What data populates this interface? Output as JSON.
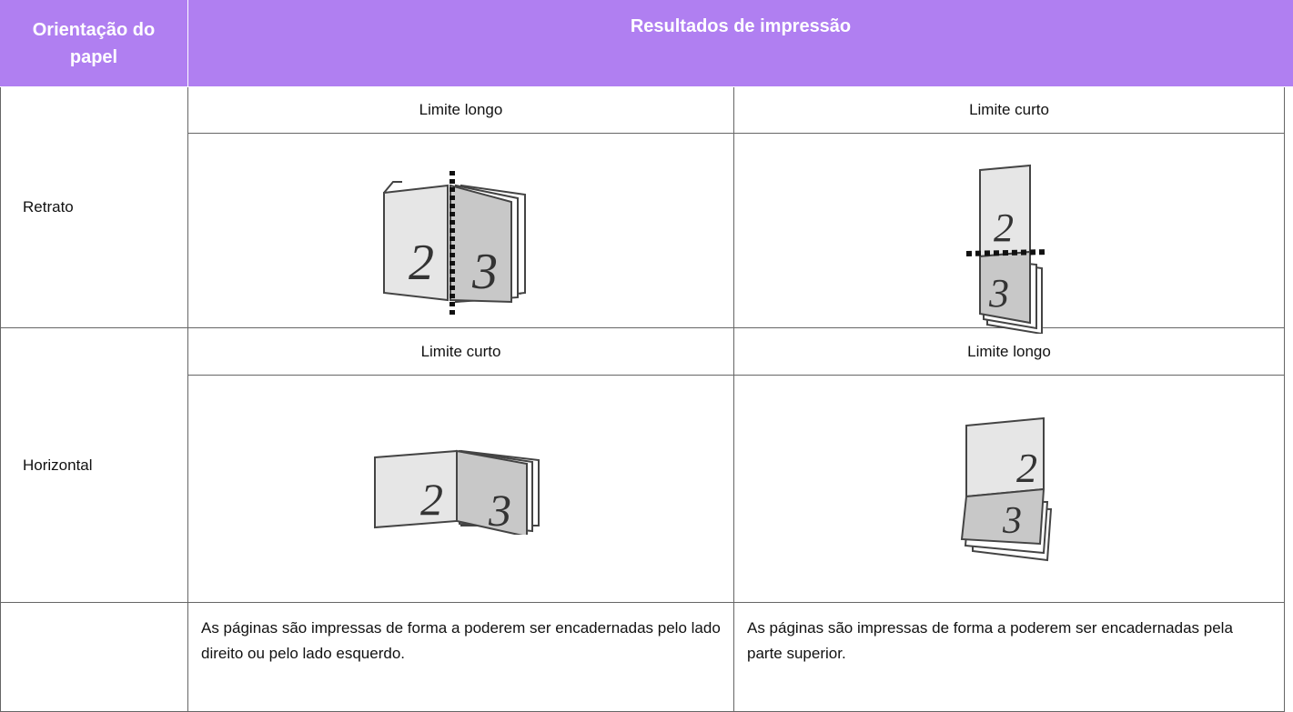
{
  "header": {
    "orientation": "Orientação do papel",
    "results": "Resultados de impressão"
  },
  "rows": [
    {
      "orientation": "Retrato",
      "options": [
        "Limite longo",
        "Limite curto"
      ],
      "illustrations": [
        {
          "front": "2",
          "back": "3"
        },
        {
          "front": "2",
          "back": "3"
        }
      ]
    },
    {
      "orientation": "Horizontal",
      "options": [
        "Limite curto",
        "Limite longo"
      ],
      "illustrations": [
        {
          "front": "2",
          "back": "3"
        },
        {
          "front": "2",
          "back": "3"
        }
      ]
    }
  ],
  "notes": [
    "As páginas são impressas de forma a poderem ser encadernadas pelo lado direito ou pelo lado esquerdo.",
    "As páginas são impressas de forma a poderem ser encadernadas pela parte superior."
  ]
}
